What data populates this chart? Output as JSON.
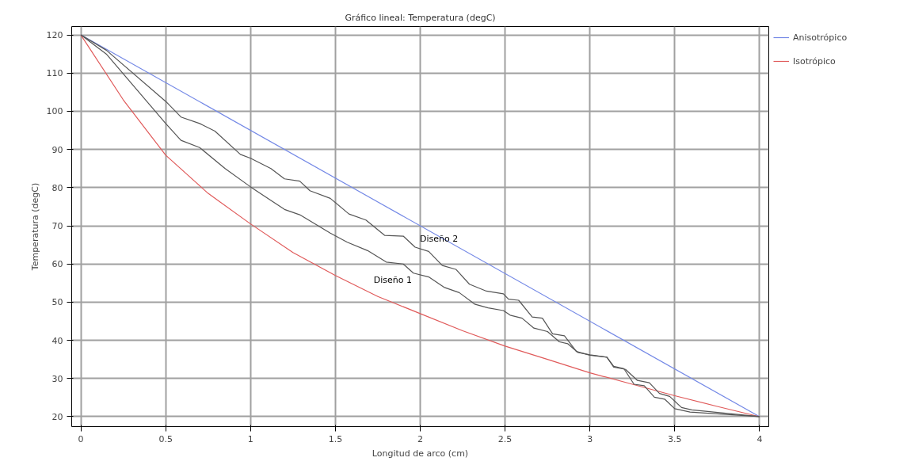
{
  "chart_data": {
    "type": "line",
    "title": "Gráfico lineal: Temperatura (degC)",
    "xlabel": "Longitud de arco (cm)",
    "ylabel": "Temperatura (degC)",
    "xlim": [
      -0.054,
      4.054
    ],
    "ylim": [
      17.4,
      122.2
    ],
    "xticks": [
      0,
      0.5,
      1,
      1.5,
      2,
      2.5,
      3,
      3.5,
      4
    ],
    "yticks": [
      20,
      30,
      40,
      50,
      60,
      70,
      80,
      90,
      100,
      110,
      120
    ],
    "grid": true,
    "legend": "right",
    "marker": "none",
    "line_style": "solid",
    "series": [
      {
        "name": "Anisotrópico",
        "color": "#7388e6",
        "x": [
          0,
          4
        ],
        "values": [
          120,
          20
        ]
      },
      {
        "name": "Isotrópico",
        "color": "#e05a5a",
        "x": [
          0,
          0.25,
          0.5,
          0.75,
          1,
          1.25,
          1.5,
          1.75,
          2,
          2.25,
          2.5,
          2.75,
          3,
          3.25,
          3.5,
          3.75,
          4
        ],
        "values": [
          120,
          103,
          88.5,
          78.5,
          70.5,
          63,
          57,
          51.5,
          47,
          42.5,
          38.5,
          35,
          31.5,
          28.5,
          25.5,
          22.7,
          20
        ]
      },
      {
        "name": "Diseño 1",
        "color": "#555555",
        "x": [
          0,
          0.15,
          0.5,
          0.59,
          0.7,
          0.85,
          1.0,
          1.2,
          1.29,
          1.47,
          1.57,
          1.69,
          1.8,
          1.9,
          1.96,
          2.05,
          2.14,
          2.23,
          2.32,
          2.4,
          2.49,
          2.53,
          2.6,
          2.67,
          2.75,
          2.82,
          2.87,
          2.93,
          3.0,
          3.1,
          3.14,
          3.2,
          3.26,
          3.32,
          3.38,
          3.44,
          3.5,
          3.59,
          4
        ],
        "values": [
          120,
          115,
          96.8,
          92.4,
          90.5,
          85,
          80.2,
          74.3,
          72.9,
          68.1,
          65.7,
          63.5,
          60.5,
          60,
          57.6,
          56.6,
          53.9,
          52.5,
          49.5,
          48.5,
          47.8,
          46.6,
          45.8,
          43.2,
          42.3,
          39.6,
          39.1,
          36.8,
          36.2,
          35.6,
          33.2,
          32.6,
          28.5,
          28.1,
          25.1,
          24.6,
          22.1,
          21.2,
          20
        ]
      },
      {
        "name": "Diseño 2",
        "color": "#555555",
        "x": [
          0,
          0.15,
          0.5,
          0.59,
          0.7,
          0.79,
          0.94,
          1.0,
          1.12,
          1.2,
          1.29,
          1.35,
          1.47,
          1.58,
          1.68,
          1.79,
          1.9,
          1.97,
          2.05,
          2.13,
          2.21,
          2.29,
          2.39,
          2.49,
          2.52,
          2.58,
          2.66,
          2.72,
          2.78,
          2.85,
          2.92,
          3.0,
          3.1,
          3.14,
          3.21,
          3.28,
          3.35,
          3.41,
          3.47,
          3.54,
          3.6,
          4
        ],
        "values": [
          120,
          116,
          102.6,
          98.5,
          96.8,
          94.8,
          88.7,
          87.7,
          85,
          82.3,
          81.7,
          79.2,
          77.2,
          73.1,
          71.5,
          67.5,
          67.3,
          64.4,
          63.3,
          59.6,
          58.6,
          54.7,
          52.9,
          52.2,
          50.8,
          50.5,
          46.1,
          45.8,
          41.7,
          41.2,
          37.1,
          36.1,
          35.6,
          33,
          32.4,
          29.5,
          28.9,
          26.1,
          25.3,
          22.4,
          21.8,
          20
        ]
      }
    ]
  }
}
